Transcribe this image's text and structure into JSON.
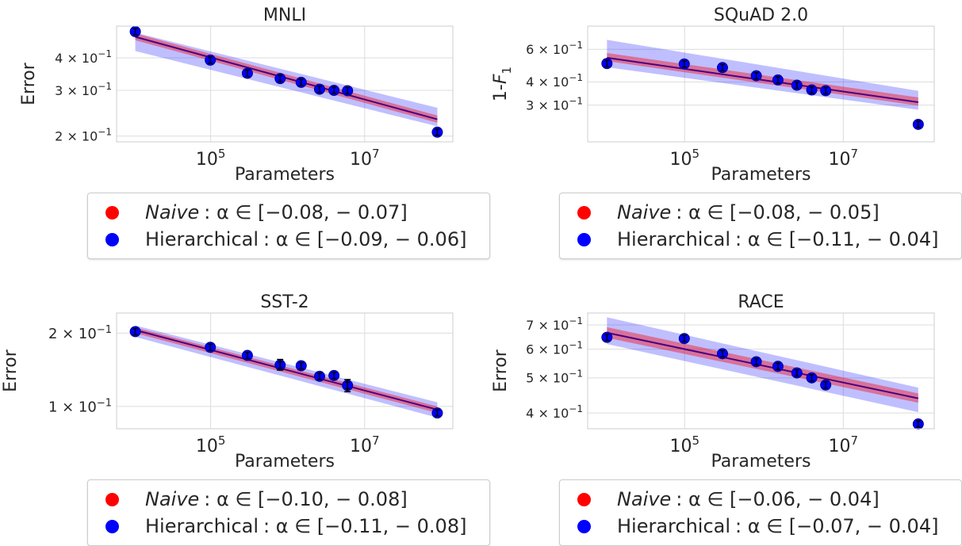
{
  "chart_data": [
    {
      "type": "scatter",
      "title": "MNLI",
      "xlabel": "Parameters",
      "ylabel": "Error",
      "xscale": "log",
      "yscale": "log",
      "xlim": [
        6000,
        140000000
      ],
      "ylim": [
        0.19,
        0.53
      ],
      "xticks": [
        {
          "value": 100000,
          "base": "10",
          "exp": "5"
        },
        {
          "value": 10000000,
          "base": "10",
          "exp": "7"
        }
      ],
      "yticks": [
        {
          "value": 0.2,
          "mant": "2 × ",
          "base": "10",
          "exp": "−1"
        },
        {
          "value": 0.3,
          "mant": "3 × ",
          "base": "10",
          "exp": "−1"
        },
        {
          "value": 0.4,
          "mant": "4 × ",
          "base": "10",
          "exp": "−1"
        }
      ],
      "points": [
        {
          "x": 10500,
          "y": 0.505
        },
        {
          "x": 99000,
          "y": 0.392
        },
        {
          "x": 300000,
          "y": 0.349
        },
        {
          "x": 800000,
          "y": 0.333
        },
        {
          "x": 1500000,
          "y": 0.322
        },
        {
          "x": 2600000,
          "y": 0.303
        },
        {
          "x": 4000000,
          "y": 0.3
        },
        {
          "x": 6000000,
          "y": 0.299
        },
        {
          "x": 88000000,
          "y": 0.207
        }
      ],
      "fit_line": [
        {
          "x": 10500,
          "y": 0.482
        },
        {
          "x": 88000000,
          "y": 0.232
        }
      ],
      "naive_band": {
        "x": [
          10500,
          88000000
        ],
        "lower": [
          0.468,
          0.225
        ],
        "upper": [
          0.497,
          0.24
        ]
      },
      "hier_band": {
        "x": [
          10500,
          88000000
        ],
        "lower": [
          0.425,
          0.218
        ],
        "upper": [
          0.5,
          0.257
        ]
      },
      "legend": {
        "naive_label": "Naive",
        "naive_range": ":  α ∈ [−0.08, − 0.07]",
        "hier_label": "Hierarchical",
        "hier_range": ": α ∈ [−0.09, − 0.06]"
      }
    },
    {
      "type": "scatter",
      "title": "SQuAD 2.0",
      "xlabel": "Parameters",
      "ylabel": "1-F1",
      "xscale": "log",
      "yscale": "log",
      "xlim": [
        6000,
        140000000
      ],
      "ylim": [
        0.19,
        0.8
      ],
      "xticks": [
        {
          "value": 100000,
          "base": "10",
          "exp": "5"
        },
        {
          "value": 10000000,
          "base": "10",
          "exp": "7"
        }
      ],
      "yticks": [
        {
          "value": 0.3,
          "mant": "3 × ",
          "base": "10",
          "exp": "−1"
        },
        {
          "value": 0.4,
          "mant": "4 × ",
          "base": "10",
          "exp": "−1"
        },
        {
          "value": 0.6,
          "mant": "6 × ",
          "base": "10",
          "exp": "−1"
        }
      ],
      "points": [
        {
          "x": 10500,
          "y": 0.503
        },
        {
          "x": 99000,
          "y": 0.5
        },
        {
          "x": 300000,
          "y": 0.478
        },
        {
          "x": 800000,
          "y": 0.432
        },
        {
          "x": 1500000,
          "y": 0.41
        },
        {
          "x": 2600000,
          "y": 0.384
        },
        {
          "x": 4000000,
          "y": 0.362
        },
        {
          "x": 6000000,
          "y": 0.359
        },
        {
          "x": 88000000,
          "y": 0.236
        }
      ],
      "fit_line": [
        {
          "x": 10500,
          "y": 0.54
        },
        {
          "x": 88000000,
          "y": 0.311
        }
      ],
      "naive_band": {
        "x": [
          10500,
          88000000
        ],
        "lower": [
          0.518,
          0.298
        ],
        "upper": [
          0.573,
          0.33
        ]
      },
      "hier_band": {
        "x": [
          10500,
          88000000
        ],
        "lower": [
          0.48,
          0.283
        ],
        "upper": [
          0.675,
          0.358
        ]
      },
      "legend": {
        "naive_label": "Naive",
        "naive_range": ":  α ∈ [−0.08, − 0.05]",
        "hier_label": "Hierarchical",
        "hier_range": ": α ∈ [−0.11, − 0.04]"
      }
    },
    {
      "type": "scatter",
      "title": "SST-2",
      "xlabel": "Parameters",
      "ylabel": "Error",
      "xscale": "log",
      "yscale": "log",
      "xlim": [
        6000,
        140000000
      ],
      "ylim": [
        0.081,
        0.242
      ],
      "xticks": [
        {
          "value": 100000,
          "base": "10",
          "exp": "5"
        },
        {
          "value": 10000000,
          "base": "10",
          "exp": "7"
        }
      ],
      "yticks": [
        {
          "value": 0.1,
          "mant": "1 × ",
          "base": "10",
          "exp": "−1"
        },
        {
          "value": 0.2,
          "mant": "2 × ",
          "base": "10",
          "exp": "−1"
        }
      ],
      "points": [
        {
          "x": 10500,
          "y": 0.203
        },
        {
          "x": 99000,
          "y": 0.175
        },
        {
          "x": 300000,
          "y": 0.162
        },
        {
          "x": 800000,
          "y": 0.148
        },
        {
          "x": 1500000,
          "y": 0.147
        },
        {
          "x": 2600000,
          "y": 0.133
        },
        {
          "x": 4000000,
          "y": 0.134
        },
        {
          "x": 6000000,
          "y": 0.122
        },
        {
          "x": 88000000,
          "y": 0.094
        }
      ],
      "error_bars": [
        {
          "x": 800000,
          "low": 0.141,
          "high": 0.156
        },
        {
          "x": 6000000,
          "low": 0.115,
          "high": 0.129
        }
      ],
      "fit_line": [
        {
          "x": 10500,
          "y": 0.206
        },
        {
          "x": 88000000,
          "y": 0.097
        }
      ],
      "naive_band": {
        "x": [
          10500,
          88000000
        ],
        "lower": [
          0.2,
          0.094
        ],
        "upper": [
          0.211,
          0.1
        ]
      },
      "hier_band": {
        "x": [
          10500,
          88000000
        ],
        "lower": [
          0.193,
          0.09
        ],
        "upper": [
          0.215,
          0.104
        ]
      },
      "legend": {
        "naive_label": "Naive",
        "naive_range": ":  α ∈ [−0.10, − 0.08]",
        "hier_label": "Hierarchical",
        "hier_range": ": α ∈ [−0.11, − 0.08]"
      }
    },
    {
      "type": "scatter",
      "title": "RACE",
      "xlabel": "Parameters",
      "ylabel": "Error",
      "xscale": "log",
      "yscale": "log",
      "xlim": [
        6000,
        140000000
      ],
      "ylim": [
        0.362,
        0.755
      ],
      "xticks": [
        {
          "value": 100000,
          "base": "10",
          "exp": "5"
        },
        {
          "value": 10000000,
          "base": "10",
          "exp": "7"
        }
      ],
      "yticks": [
        {
          "value": 0.4,
          "mant": "4 × ",
          "base": "10",
          "exp": "−1"
        },
        {
          "value": 0.5,
          "mant": "5 × ",
          "base": "10",
          "exp": "−1"
        },
        {
          "value": 0.6,
          "mant": "6 × ",
          "base": "10",
          "exp": "−1"
        },
        {
          "value": 0.7,
          "mant": "7 × ",
          "base": "10",
          "exp": "−1"
        }
      ],
      "points": [
        {
          "x": 10500,
          "y": 0.647
        },
        {
          "x": 99000,
          "y": 0.642
        },
        {
          "x": 300000,
          "y": 0.583
        },
        {
          "x": 800000,
          "y": 0.554
        },
        {
          "x": 1500000,
          "y": 0.538
        },
        {
          "x": 2600000,
          "y": 0.516
        },
        {
          "x": 4000000,
          "y": 0.5
        },
        {
          "x": 6000000,
          "y": 0.478
        },
        {
          "x": 88000000,
          "y": 0.373
        }
      ],
      "fit_line": [
        {
          "x": 10500,
          "y": 0.666
        },
        {
          "x": 88000000,
          "y": 0.439
        }
      ],
      "naive_band": {
        "x": [
          10500,
          88000000
        ],
        "lower": [
          0.645,
          0.427
        ],
        "upper": [
          0.69,
          0.453
        ]
      },
      "hier_band": {
        "x": [
          10500,
          88000000
        ],
        "lower": [
          0.62,
          0.402
        ],
        "upper": [
          0.735,
          0.47
        ]
      },
      "legend": {
        "naive_label": "Naive",
        "naive_range": ":  α ∈ [−0.06, − 0.04]",
        "hier_label": "Hierarchical",
        "hier_range": ": α ∈ [−0.07, − 0.04]"
      }
    }
  ],
  "colors": {
    "naive": "#ff0000",
    "hierarchical": "#0000ff",
    "fit_line": "#4b0082",
    "point_edge": "#00008b",
    "grid": "#dcdcdc",
    "axes_edge": "#cccccc",
    "text": "#262626"
  }
}
